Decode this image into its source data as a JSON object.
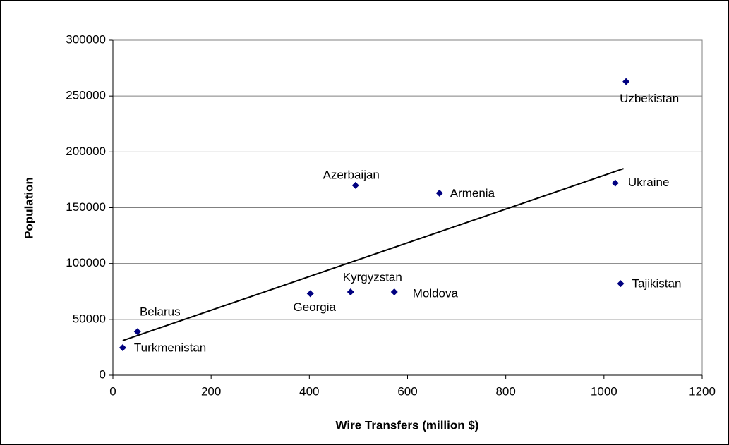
{
  "chart_data": {
    "type": "scatter",
    "x_label": "Wire Transfers (million $)",
    "y_label": "Population",
    "labels": [
      "Uzbekistan",
      "Ukraine",
      "Tajikistan",
      "Armenia",
      "Azerbaijan",
      "Kyrgyzstan",
      "Moldova",
      "Georgia",
      "Belarus",
      "Turkmenistan"
    ],
    "x": [
      1045,
      1023,
      1034,
      665,
      494,
      484,
      573,
      402,
      50,
      20
    ],
    "values": [
      263000,
      172000,
      82000,
      163000,
      170000,
      74500,
      74500,
      73000,
      39000,
      24600
    ],
    "color": "#000080",
    "trendline": {
      "x": [
        20,
        1040
      ],
      "y": [
        31000,
        185000
      ],
      "color": "#000000"
    },
    "xlim": [
      0,
      1200
    ],
    "xticks": [
      0,
      200,
      400,
      600,
      800,
      1000,
      1200
    ],
    "ylim": [
      0,
      300000
    ],
    "yticks": [
      0,
      50000,
      100000,
      150000,
      200000,
      250000,
      300000
    ],
    "grid": true
  }
}
